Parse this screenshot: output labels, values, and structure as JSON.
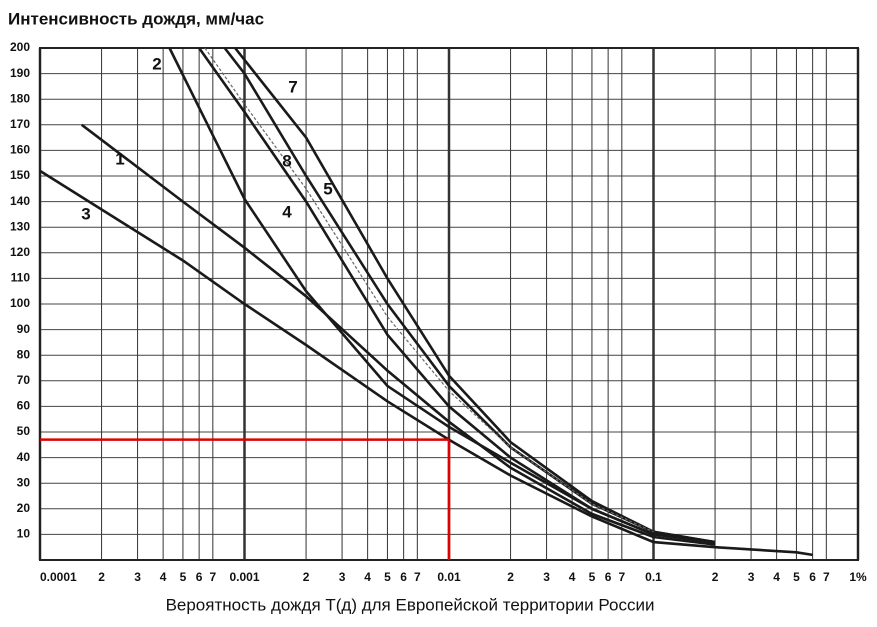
{
  "chart_data": {
    "type": "line",
    "title": "Интенсивность дождя, мм/час",
    "xlabel": "Вероятность дождя T(д) для  Европейской территории России",
    "log_x": true,
    "grid": true,
    "xlim": [
      0.0001,
      1
    ],
    "ylim": [
      0,
      200
    ],
    "xticks": [
      0.0001,
      {
        "value": 0.0002,
        "label": "2"
      },
      {
        "value": 0.0003,
        "label": "3"
      },
      {
        "value": 0.0004,
        "label": "4"
      },
      {
        "value": 0.0005,
        "label": "5"
      },
      {
        "value": 0.0006,
        "label": "6"
      },
      {
        "value": 0.0007,
        "label": "7"
      },
      0.001,
      {
        "value": 0.002,
        "label": "2"
      },
      {
        "value": 0.003,
        "label": "3"
      },
      {
        "value": 0.004,
        "label": "4"
      },
      {
        "value": 0.005,
        "label": "5"
      },
      {
        "value": 0.006,
        "label": "6"
      },
      {
        "value": 0.007,
        "label": "7"
      },
      0.01,
      {
        "value": 0.02,
        "label": "2"
      },
      {
        "value": 0.03,
        "label": "3"
      },
      {
        "value": 0.04,
        "label": "4"
      },
      {
        "value": 0.05,
        "label": "5"
      },
      {
        "value": 0.06,
        "label": "6"
      },
      {
        "value": 0.07,
        "label": "7"
      },
      0.1,
      {
        "value": 0.2,
        "label": "2"
      },
      {
        "value": 0.3,
        "label": "3"
      },
      {
        "value": 0.4,
        "label": "4"
      },
      {
        "value": 0.5,
        "label": "5"
      },
      {
        "value": 0.6,
        "label": "6"
      },
      {
        "value": 0.7,
        "label": "7"
      },
      {
        "value": 1,
        "label": "1%"
      }
    ],
    "yticks": [
      10,
      20,
      30,
      40,
      50,
      60,
      70,
      80,
      90,
      100,
      110,
      120,
      130,
      140,
      150,
      160,
      170,
      180,
      190,
      200
    ],
    "reference": {
      "x": 0.01,
      "y": 47,
      "color": "#e00000"
    },
    "series": [
      {
        "name": "1",
        "color": "#1a1a1a",
        "x": [
          0.00016,
          0.0005,
          0.001,
          0.002,
          0.005,
          0.01,
          0.02,
          0.05,
          0.1,
          0.2
        ],
        "values": [
          170,
          140,
          122,
          103,
          74,
          54,
          36,
          18,
          9,
          6
        ]
      },
      {
        "name": "2",
        "color": "#1a1a1a",
        "x": [
          0.00043,
          0.001,
          0.002,
          0.005,
          0.01,
          0.02,
          0.05,
          0.1,
          0.2
        ],
        "values": [
          200,
          141,
          105,
          68,
          52,
          38,
          20,
          10,
          7
        ]
      },
      {
        "name": "3",
        "color": "#1a1a1a",
        "x": [
          0.0001,
          0.0005,
          0.001,
          0.002,
          0.005,
          0.01,
          0.02,
          0.05,
          0.1,
          0.2,
          0.5,
          0.6
        ],
        "values": [
          152,
          117,
          100,
          84,
          62,
          47,
          33,
          17,
          7,
          5,
          3,
          2
        ]
      },
      {
        "name": "4",
        "color": "#1a1a1a",
        "x": [
          0.0006,
          0.001,
          0.002,
          0.005,
          0.01,
          0.02,
          0.05,
          0.1,
          0.2
        ],
        "values": [
          200,
          175,
          140,
          88,
          60,
          40,
          20,
          10,
          7
        ]
      },
      {
        "name": "5",
        "color": "#1a1a1a",
        "x": [
          0.0008,
          0.001,
          0.002,
          0.005,
          0.01,
          0.02,
          0.05,
          0.1,
          0.2
        ],
        "values": [
          200,
          190,
          150,
          100,
          68,
          44,
          22,
          11,
          7
        ]
      },
      {
        "name": "7",
        "color": "#1a1a1a",
        "x": [
          0.0009,
          0.002,
          0.005,
          0.01,
          0.02,
          0.05,
          0.1,
          0.2
        ],
        "values": [
          200,
          165,
          110,
          72,
          46,
          23,
          11,
          7
        ]
      },
      {
        "name": "8",
        "color": "#666666",
        "x": [
          0.00064,
          0.001,
          0.002,
          0.005,
          0.01,
          0.02,
          0.05,
          0.1
        ],
        "values": [
          200,
          178,
          145,
          95,
          66,
          44,
          22,
          11
        ]
      }
    ]
  }
}
